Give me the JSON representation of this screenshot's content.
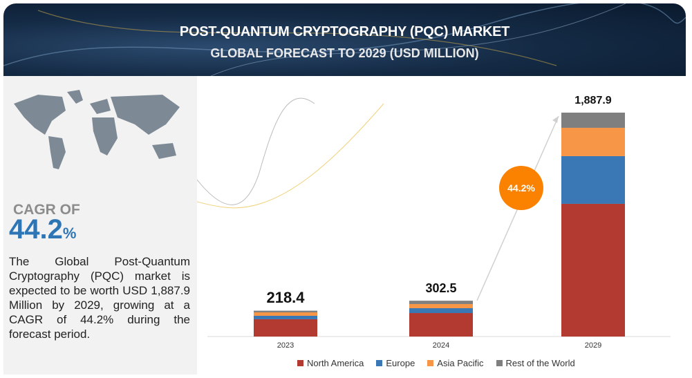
{
  "header": {
    "title": "POST-QUANTUM CRYPTOGRAPHY (PQC) MARKET",
    "subtitle": "GLOBAL FORECAST TO 2029 (USD MILLION)"
  },
  "sidebar": {
    "cagr_label": "CAGR OF",
    "cagr_value": "44.2",
    "cagr_unit": "%",
    "description": "The Global Post-Quantum Cryptography (PQC) market is expected to be worth USD 1,887.9 Million by 2029, growing at a CAGR of 44.2% during the forecast period."
  },
  "chart_data": {
    "type": "bar",
    "stacked": true,
    "categories": [
      "2023",
      "2024",
      "2029"
    ],
    "totals": [
      "218.4",
      "302.5",
      "1,887.9"
    ],
    "total_values": [
      218.4,
      302.5,
      1887.9
    ],
    "series": [
      {
        "name": "North America",
        "color": "#b33a31",
        "values": [
          146,
          198,
          1119
        ]
      },
      {
        "name": "Europe",
        "color": "#3a78b5",
        "values": [
          29,
          41,
          402
        ]
      },
      {
        "name": "Asia Pacific",
        "color": "#f79646",
        "values": [
          29,
          35,
          239
        ]
      },
      {
        "name": "Rest of the World",
        "color": "#7f7f7f",
        "values": [
          14,
          28,
          128
        ]
      }
    ],
    "annotation": "44.2%",
    "legend": "bottom",
    "ylim": [
      0,
      1887.9
    ]
  }
}
